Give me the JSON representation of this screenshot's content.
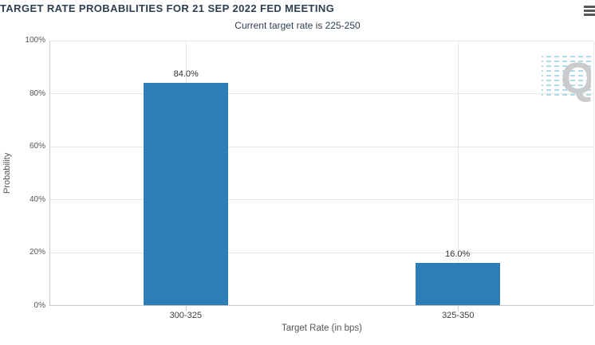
{
  "header": {
    "menu_icon": "hamburger-icon"
  },
  "chart_data": {
    "type": "bar",
    "title": "TARGET RATE PROBABILITIES FOR 21 SEP 2022 FED MEETING",
    "subtitle": "Current target rate is 225-250",
    "categories": [
      "300-325",
      "325-350"
    ],
    "values": [
      84.0,
      16.0
    ],
    "data_labels": [
      "84.0%",
      "16.0%"
    ],
    "xlabel": "Target Rate (in bps)",
    "ylabel": "Probability",
    "ylim": [
      0,
      100
    ],
    "yticks": [
      "0%",
      "20%",
      "40%",
      "60%",
      "80%",
      "100%"
    ],
    "grid": true,
    "legend": false,
    "bar_color": "#2d7db6",
    "title_color": "#2e3e52",
    "axis_text_color": "#555555",
    "gridline_color": "#e6e6e6"
  },
  "watermark": {
    "letter": "Q",
    "letter_color": "#c9cbcd",
    "hatch_color": "#aedbe7"
  }
}
